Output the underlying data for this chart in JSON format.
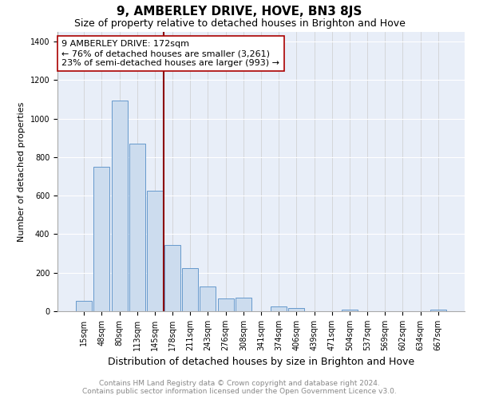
{
  "title": "9, AMBERLEY DRIVE, HOVE, BN3 8JS",
  "subtitle": "Size of property relative to detached houses in Brighton and Hove",
  "xlabel": "Distribution of detached houses by size in Brighton and Hove",
  "ylabel": "Number of detached properties",
  "categories": [
    "15sqm",
    "48sqm",
    "80sqm",
    "113sqm",
    "145sqm",
    "178sqm",
    "211sqm",
    "243sqm",
    "276sqm",
    "308sqm",
    "341sqm",
    "374sqm",
    "406sqm",
    "439sqm",
    "471sqm",
    "504sqm",
    "537sqm",
    "569sqm",
    "602sqm",
    "634sqm",
    "667sqm"
  ],
  "values": [
    55,
    750,
    1095,
    870,
    625,
    345,
    225,
    130,
    65,
    70,
    0,
    25,
    15,
    0,
    0,
    10,
    0,
    0,
    0,
    0,
    10
  ],
  "bar_color": "#ccdcee",
  "bar_edge_color": "#6699cc",
  "vline_x": 4.5,
  "vline_color": "#8b0000",
  "annotation_text": "9 AMBERLEY DRIVE: 172sqm\n← 76% of detached houses are smaller (3,261)\n23% of semi-detached houses are larger (993) →",
  "annotation_box_color": "#ffffff",
  "annotation_box_edge": "#aa0000",
  "ylim": [
    0,
    1450
  ],
  "yticks": [
    0,
    200,
    400,
    600,
    800,
    1000,
    1200,
    1400
  ],
  "footer_line1": "Contains HM Land Registry data © Crown copyright and database right 2024.",
  "footer_line2": "Contains public sector information licensed under the Open Government Licence v3.0.",
  "bg_color": "#ffffff",
  "plot_bg_color": "#e8eef8",
  "title_fontsize": 11,
  "subtitle_fontsize": 9,
  "xlabel_fontsize": 9,
  "ylabel_fontsize": 8,
  "tick_fontsize": 7,
  "annotation_fontsize": 8,
  "footer_fontsize": 6.5
}
